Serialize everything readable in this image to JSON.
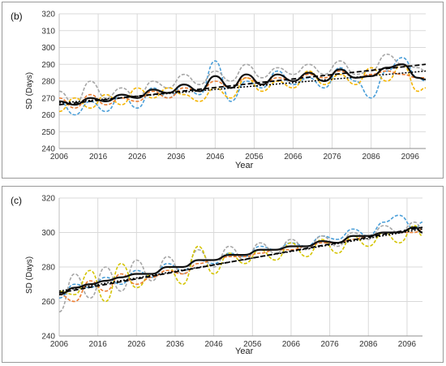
{
  "chart_data": [
    {
      "panel_label": "(b)",
      "type": "line",
      "xlabel": "Year",
      "ylabel": "SD (Days)",
      "xlim": [
        2006,
        2100
      ],
      "ylim": [
        240,
        320
      ],
      "xticks": [
        2006,
        2016,
        2026,
        2036,
        2046,
        2056,
        2066,
        2076,
        2086,
        2096
      ],
      "yticks": [
        240,
        250,
        260,
        270,
        280,
        290,
        300,
        310,
        320
      ],
      "grid": true,
      "series": [
        {
          "style": "dashed",
          "color": "#4a9ed8",
          "x": [
            2006,
            2010,
            2014,
            2018,
            2022,
            2026,
            2030,
            2034,
            2038,
            2042,
            2046,
            2050,
            2054,
            2058,
            2062,
            2066,
            2070,
            2074,
            2078,
            2082,
            2086,
            2090,
            2094,
            2098,
            2100
          ],
          "y": [
            268,
            260,
            268,
            262,
            272,
            264,
            276,
            270,
            278,
            272,
            292,
            268,
            280,
            276,
            286,
            278,
            282,
            276,
            288,
            280,
            270,
            286,
            294,
            282,
            280
          ]
        },
        {
          "style": "dashed",
          "color": "#a6a6a6",
          "x": [
            2006,
            2010,
            2014,
            2018,
            2022,
            2026,
            2030,
            2034,
            2038,
            2042,
            2046,
            2050,
            2054,
            2058,
            2062,
            2066,
            2070,
            2074,
            2078,
            2082,
            2086,
            2090,
            2094,
            2098,
            2100
          ],
          "y": [
            274,
            266,
            280,
            270,
            276,
            270,
            280,
            276,
            284,
            278,
            286,
            280,
            290,
            282,
            288,
            284,
            290,
            284,
            292,
            284,
            286,
            296,
            290,
            288,
            286
          ]
        },
        {
          "style": "dashed",
          "color": "#f4b400",
          "x": [
            2006,
            2010,
            2014,
            2018,
            2022,
            2026,
            2030,
            2034,
            2038,
            2042,
            2046,
            2050,
            2054,
            2058,
            2062,
            2066,
            2070,
            2074,
            2078,
            2082,
            2086,
            2090,
            2094,
            2098,
            2100
          ],
          "y": [
            262,
            270,
            264,
            272,
            266,
            276,
            270,
            276,
            272,
            268,
            276,
            270,
            282,
            274,
            280,
            276,
            286,
            278,
            284,
            278,
            288,
            280,
            290,
            274,
            276
          ]
        },
        {
          "style": "dashed",
          "color": "#ed7d31",
          "x": [
            2006,
            2010,
            2014,
            2018,
            2022,
            2026,
            2030,
            2034,
            2038,
            2042,
            2046,
            2050,
            2054,
            2058,
            2062,
            2066,
            2070,
            2074,
            2078,
            2082,
            2086,
            2090,
            2094,
            2098,
            2100
          ],
          "y": [
            270,
            264,
            272,
            266,
            270,
            268,
            274,
            270,
            276,
            274,
            280,
            276,
            282,
            278,
            282,
            280,
            284,
            282,
            286,
            282,
            284,
            286,
            284,
            282,
            282
          ]
        },
        {
          "style": "solid",
          "color": "#111111",
          "x": [
            2006,
            2010,
            2014,
            2018,
            2022,
            2026,
            2030,
            2034,
            2038,
            2042,
            2046,
            2050,
            2054,
            2058,
            2062,
            2066,
            2070,
            2074,
            2078,
            2082,
            2086,
            2090,
            2094,
            2098,
            2100
          ],
          "y": [
            268,
            266,
            270,
            268,
            272,
            270,
            275,
            273,
            278,
            274,
            283,
            276,
            284,
            278,
            284,
            280,
            285,
            280,
            287,
            282,
            283,
            288,
            290,
            282,
            281
          ]
        },
        {
          "style": "dashed-trend",
          "color": "#000000",
          "x": [
            2006,
            2100
          ],
          "y": [
            266,
            290
          ]
        },
        {
          "style": "dotted-trend",
          "color": "#000000",
          "x": [
            2006,
            2100
          ],
          "y": [
            267,
            286
          ]
        }
      ]
    },
    {
      "panel_label": "(c)",
      "type": "line",
      "xlabel": "Year",
      "ylabel": "SD (Days)",
      "xlim": [
        2006,
        2100
      ],
      "ylim": [
        240,
        320
      ],
      "xticks": [
        2006,
        2016,
        2026,
        2036,
        2046,
        2056,
        2066,
        2076,
        2086,
        2096
      ],
      "yticks": [
        240,
        260,
        280,
        300,
        320
      ],
      "grid": true,
      "series": [
        {
          "style": "dashed",
          "color": "#4a9ed8",
          "x": [
            2006,
            2010,
            2014,
            2018,
            2022,
            2026,
            2030,
            2034,
            2038,
            2042,
            2046,
            2050,
            2054,
            2058,
            2062,
            2066,
            2070,
            2074,
            2078,
            2082,
            2086,
            2090,
            2094,
            2098,
            2100
          ],
          "y": [
            262,
            270,
            268,
            274,
            270,
            278,
            274,
            282,
            278,
            284,
            282,
            288,
            286,
            292,
            290,
            294,
            292,
            298,
            296,
            302,
            298,
            306,
            310,
            302,
            306
          ]
        },
        {
          "style": "dashed",
          "color": "#a6a6a6",
          "x": [
            2006,
            2010,
            2014,
            2018,
            2022,
            2026,
            2030,
            2034,
            2038,
            2042,
            2046,
            2050,
            2054,
            2058,
            2062,
            2066,
            2070,
            2074,
            2078,
            2082,
            2086,
            2090,
            2094,
            2098,
            2100
          ],
          "y": [
            254,
            276,
            262,
            280,
            266,
            284,
            272,
            286,
            276,
            290,
            280,
            292,
            284,
            294,
            288,
            296,
            290,
            298,
            292,
            300,
            296,
            304,
            300,
            306,
            302
          ]
        },
        {
          "style": "dashed",
          "color": "#d4c400",
          "x": [
            2006,
            2010,
            2014,
            2018,
            2022,
            2026,
            2030,
            2034,
            2038,
            2042,
            2046,
            2050,
            2054,
            2058,
            2062,
            2066,
            2070,
            2074,
            2078,
            2082,
            2086,
            2090,
            2094,
            2098,
            2100
          ],
          "y": [
            266,
            264,
            278,
            260,
            282,
            268,
            276,
            280,
            270,
            292,
            276,
            288,
            282,
            290,
            284,
            294,
            286,
            296,
            288,
            298,
            292,
            300,
            294,
            304,
            298
          ]
        },
        {
          "style": "dashed",
          "color": "#ed7d31",
          "x": [
            2006,
            2010,
            2014,
            2018,
            2022,
            2026,
            2030,
            2034,
            2038,
            2042,
            2046,
            2050,
            2054,
            2058,
            2062,
            2066,
            2070,
            2074,
            2078,
            2082,
            2086,
            2090,
            2094,
            2098,
            2100
          ],
          "y": [
            264,
            260,
            272,
            266,
            276,
            270,
            274,
            278,
            276,
            282,
            284,
            286,
            286,
            288,
            290,
            290,
            292,
            294,
            294,
            296,
            298,
            300,
            300,
            300,
            302
          ]
        },
        {
          "style": "solid",
          "color": "#111111",
          "x": [
            2006,
            2010,
            2014,
            2018,
            2022,
            2026,
            2030,
            2034,
            2038,
            2042,
            2046,
            2050,
            2054,
            2058,
            2062,
            2066,
            2070,
            2074,
            2078,
            2082,
            2086,
            2090,
            2094,
            2098,
            2100
          ],
          "y": [
            264,
            268,
            270,
            272,
            274,
            276,
            276,
            280,
            280,
            284,
            284,
            287,
            287,
            290,
            290,
            292,
            292,
            295,
            294,
            298,
            298,
            300,
            300,
            303,
            300
          ]
        },
        {
          "style": "dashed-trend",
          "color": "#000000",
          "x": [
            2006,
            2100
          ],
          "y": [
            265,
            303
          ]
        },
        {
          "style": "dotted-trend",
          "color": "#000000",
          "x": [
            2006,
            2100
          ],
          "y": [
            266,
            302
          ]
        }
      ]
    }
  ]
}
